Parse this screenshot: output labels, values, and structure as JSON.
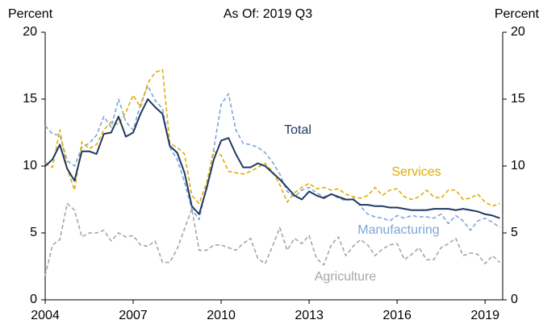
{
  "chart_data": {
    "type": "line",
    "title": "As Of: 2019 Q3",
    "y_label": "Percent",
    "y2_label": "Percent",
    "x": [
      2004,
      2004.25,
      2004.5,
      2004.75,
      2005,
      2005.25,
      2005.5,
      2005.75,
      2006,
      2006.25,
      2006.5,
      2006.75,
      2007,
      2007.25,
      2007.5,
      2007.75,
      2008,
      2008.25,
      2008.5,
      2008.75,
      2009,
      2009.25,
      2009.5,
      2009.75,
      2010,
      2010.25,
      2010.5,
      2010.75,
      2011,
      2011.25,
      2011.5,
      2011.75,
      2012,
      2012.25,
      2012.5,
      2012.75,
      2013,
      2013.25,
      2013.5,
      2013.75,
      2014,
      2014.25,
      2014.5,
      2014.75,
      2015,
      2015.25,
      2015.5,
      2015.75,
      2016,
      2016.25,
      2016.5,
      2016.75,
      2017,
      2017.25,
      2017.5,
      2017.75,
      2018,
      2018.25,
      2018.5,
      2018.75,
      2019,
      2019.25,
      2019.5
    ],
    "xlim": [
      2004,
      2019.6
    ],
    "xticks": [
      2004,
      2007,
      2010,
      2013,
      2016,
      2019
    ],
    "ylim": [
      0,
      20
    ],
    "yticks": [
      0,
      5,
      10,
      15,
      20
    ],
    "y2lim": [
      0,
      20
    ],
    "y2ticks": [
      0,
      5,
      10,
      15,
      20
    ],
    "grid": false,
    "series": [
      {
        "name": "Total",
        "color": "#1f3864",
        "line_style": "solid",
        "values": [
          10.0,
          10.5,
          11.6,
          9.8,
          8.9,
          11.1,
          11.1,
          10.9,
          12.4,
          12.5,
          13.7,
          12.2,
          12.5,
          13.9,
          15.0,
          14.4,
          13.9,
          11.5,
          11.0,
          9.5,
          7.0,
          6.4,
          8.3,
          10.5,
          11.9,
          12.1,
          10.9,
          9.9,
          9.9,
          10.2,
          10.0,
          9.5,
          9.0,
          8.4,
          7.8,
          7.5,
          8.1,
          7.8,
          7.6,
          7.9,
          7.7,
          7.5,
          7.5,
          7.1,
          7.1,
          7.0,
          7.0,
          6.9,
          6.9,
          6.8,
          6.7,
          6.7,
          6.7,
          6.8,
          6.8,
          6.8,
          6.7,
          6.8,
          6.7,
          6.6,
          6.4,
          6.3,
          6.1
        ]
      },
      {
        "name": "Services",
        "color": "#e0ac00",
        "line_style": "dashed",
        "values": [
          10.2,
          9.9,
          12.7,
          9.8,
          8.2,
          11.8,
          11.3,
          11.6,
          12.7,
          13.3,
          13.1,
          14.0,
          15.3,
          14.4,
          16.2,
          17.0,
          17.2,
          11.7,
          11.4,
          10.9,
          7.8,
          7.2,
          8.7,
          11.1,
          10.8,
          9.6,
          9.5,
          9.4,
          9.6,
          9.9,
          10.2,
          9.6,
          8.6,
          7.3,
          8.0,
          8.4,
          8.7,
          8.3,
          8.4,
          8.2,
          8.3,
          7.9,
          7.7,
          7.6,
          7.8,
          8.4,
          7.8,
          8.2,
          8.3,
          7.7,
          7.5,
          7.7,
          8.2,
          7.7,
          7.6,
          8.2,
          8.2,
          7.5,
          7.6,
          7.9,
          7.3,
          7.0,
          7.2
        ]
      },
      {
        "name": "Manufacturing",
        "color": "#7ea6d6",
        "line_style": "dashed",
        "values": [
          13.0,
          12.4,
          12.3,
          10.4,
          10.0,
          11.4,
          11.7,
          12.3,
          13.7,
          12.9,
          15.0,
          13.3,
          12.7,
          14.6,
          16.0,
          14.9,
          14.3,
          11.4,
          10.5,
          8.8,
          6.8,
          6.0,
          8.5,
          11.3,
          14.6,
          15.4,
          12.7,
          11.7,
          11.6,
          11.4,
          11.0,
          10.3,
          9.4,
          8.1,
          7.7,
          8.2,
          8.4,
          8.0,
          7.7,
          7.9,
          7.6,
          7.4,
          7.6,
          7.0,
          6.4,
          6.2,
          6.1,
          5.9,
          6.3,
          6.1,
          6.3,
          6.2,
          6.2,
          6.1,
          6.4,
          5.7,
          6.3,
          5.9,
          5.2,
          5.9,
          6.1,
          5.8,
          5.4
        ]
      },
      {
        "name": "Agriculture",
        "color": "#a6a6a6",
        "line_style": "dashed",
        "values": [
          1.8,
          4.1,
          4.5,
          7.2,
          6.7,
          4.7,
          5.0,
          5.0,
          5.2,
          4.4,
          5.0,
          4.7,
          4.8,
          4.1,
          4.0,
          4.4,
          2.8,
          2.8,
          3.8,
          5.3,
          6.8,
          3.7,
          3.7,
          4.1,
          4.1,
          3.9,
          3.7,
          4.2,
          4.6,
          3.1,
          2.7,
          4.0,
          5.4,
          3.7,
          4.6,
          4.2,
          4.8,
          3.1,
          2.6,
          4.1,
          4.7,
          3.3,
          4.0,
          4.5,
          4.1,
          3.3,
          3.8,
          4.1,
          4.2,
          3.0,
          3.4,
          3.9,
          3.0,
          3.0,
          3.9,
          4.2,
          4.6,
          3.3,
          3.5,
          3.4,
          2.7,
          3.3,
          2.8
        ]
      }
    ]
  }
}
